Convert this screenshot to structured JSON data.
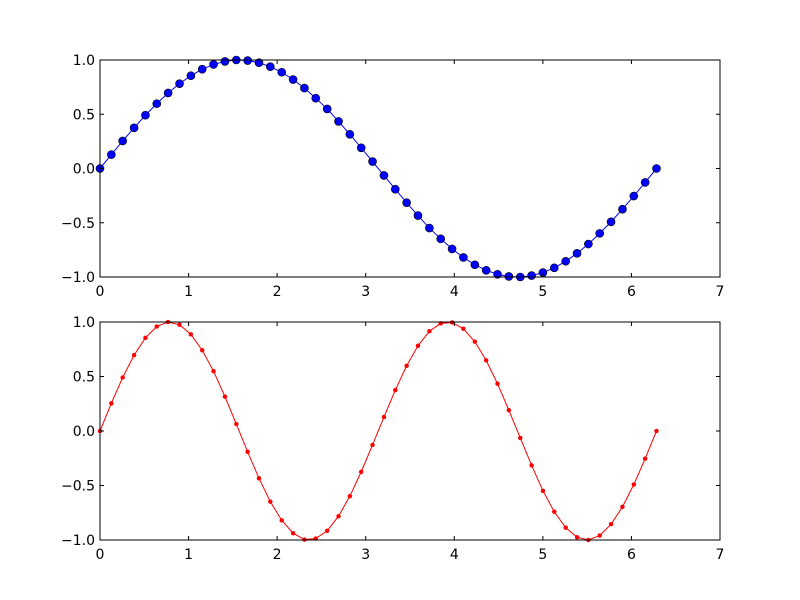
{
  "chart_data": [
    {
      "type": "line",
      "marker": "circle",
      "color": "#0000ff",
      "marker_color": "#0000ff",
      "xlim": [
        0,
        7
      ],
      "ylim": [
        -1.0,
        1.0
      ],
      "grid": false,
      "xticks": [
        "0",
        "1",
        "2",
        "3",
        "4",
        "5",
        "6",
        "7"
      ],
      "yticks": [
        "−1.0",
        "−0.5",
        "0.0",
        "0.5",
        "1.0"
      ],
      "x": [
        0,
        0.128,
        0.256,
        0.385,
        0.513,
        0.641,
        0.769,
        0.898,
        1.026,
        1.154,
        1.282,
        1.411,
        1.539,
        1.667,
        1.795,
        1.923,
        2.052,
        2.18,
        2.308,
        2.436,
        2.565,
        2.693,
        2.821,
        2.949,
        3.077,
        3.206,
        3.334,
        3.462,
        3.59,
        3.719,
        3.847,
        3.975,
        4.103,
        4.232,
        4.36,
        4.488,
        4.616,
        4.745,
        4.873,
        5.001,
        5.129,
        5.258,
        5.386,
        5.514,
        5.642,
        5.77,
        5.899,
        6.027,
        6.155,
        6.283
      ],
      "y": [
        0,
        0.128,
        0.254,
        0.375,
        0.491,
        0.598,
        0.696,
        0.782,
        0.855,
        0.915,
        0.959,
        0.987,
        1.0,
        0.995,
        0.975,
        0.938,
        0.887,
        0.82,
        0.741,
        0.648,
        0.549,
        0.434,
        0.315,
        0.191,
        0.064,
        -0.064,
        -0.191,
        -0.315,
        -0.434,
        -0.549,
        -0.648,
        -0.741,
        -0.82,
        -0.887,
        -0.938,
        -0.975,
        -0.995,
        -1.0,
        -0.987,
        -0.959,
        -0.915,
        -0.855,
        -0.782,
        -0.696,
        -0.598,
        -0.491,
        -0.375,
        -0.254,
        -0.128,
        0
      ]
    },
    {
      "type": "line",
      "marker": "point",
      "color": "#ff0000",
      "marker_color": "#ff0000",
      "xlim": [
        0,
        7
      ],
      "ylim": [
        -1.0,
        1.0
      ],
      "grid": false,
      "xticks": [
        "0",
        "1",
        "2",
        "3",
        "4",
        "5",
        "6",
        "7"
      ],
      "yticks": [
        "−1.0",
        "−0.5",
        "0.0",
        "0.5",
        "1.0"
      ],
      "x": [
        0,
        0.128,
        0.256,
        0.385,
        0.513,
        0.641,
        0.769,
        0.898,
        1.026,
        1.154,
        1.282,
        1.411,
        1.539,
        1.667,
        1.795,
        1.923,
        2.052,
        2.18,
        2.308,
        2.436,
        2.565,
        2.693,
        2.821,
        2.949,
        3.077,
        3.206,
        3.334,
        3.462,
        3.59,
        3.719,
        3.847,
        3.975,
        4.103,
        4.232,
        4.36,
        4.488,
        4.616,
        4.745,
        4.873,
        5.001,
        5.129,
        5.258,
        5.386,
        5.514,
        5.642,
        5.77,
        5.899,
        6.027,
        6.155,
        6.283
      ],
      "y": [
        0,
        0.254,
        0.491,
        0.696,
        0.855,
        0.959,
        1.0,
        0.975,
        0.887,
        0.741,
        0.549,
        0.315,
        0.064,
        -0.191,
        -0.434,
        -0.648,
        -0.82,
        -0.938,
        -0.996,
        -0.987,
        -0.915,
        -0.782,
        -0.598,
        -0.375,
        -0.128,
        0.128,
        0.375,
        0.598,
        0.782,
        0.915,
        0.987,
        0.996,
        0.938,
        0.82,
        0.648,
        0.434,
        0.191,
        -0.064,
        -0.315,
        -0.549,
        -0.741,
        -0.887,
        -0.975,
        -1.0,
        -0.959,
        -0.855,
        -0.696,
        -0.491,
        -0.254,
        0
      ]
    }
  ]
}
